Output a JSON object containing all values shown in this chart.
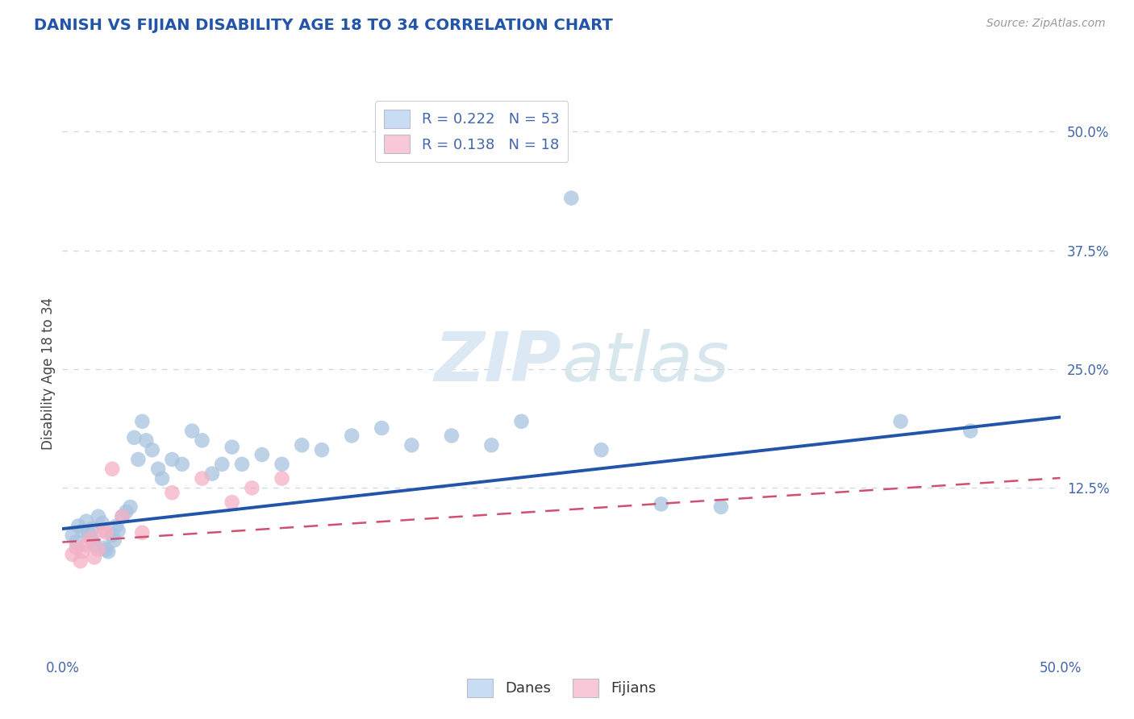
{
  "title": "DANISH VS FIJIAN DISABILITY AGE 18 TO 34 CORRELATION CHART",
  "source_text": "Source: ZipAtlas.com",
  "ylabel": "Disability Age 18 to 34",
  "xlim": [
    0.0,
    0.5
  ],
  "ylim": [
    -0.05,
    0.54
  ],
  "dane_R": 0.222,
  "dane_N": 53,
  "fijian_R": 0.138,
  "fijian_N": 18,
  "background_color": "#ffffff",
  "grid_color": "#c8d4e8",
  "dane_color": "#a8c4e0",
  "fijian_color": "#f4b0c4",
  "dane_line_color": "#2255aa",
  "fijian_line_color": "#d05070",
  "legend_box_color_dane": "#c8dcf4",
  "legend_box_color_fijian": "#f8c8d8",
  "watermark_color": "#dce8f4",
  "title_color": "#2255aa",
  "tick_color": "#4466aa",
  "ylabel_color": "#444444",
  "source_color": "#999999",
  "danes_x": [
    0.005,
    0.007,
    0.008,
    0.01,
    0.012,
    0.013,
    0.014,
    0.015,
    0.015,
    0.016,
    0.018,
    0.02,
    0.021,
    0.022,
    0.023,
    0.025,
    0.026,
    0.027,
    0.028,
    0.03,
    0.032,
    0.034,
    0.036,
    0.038,
    0.04,
    0.042,
    0.045,
    0.048,
    0.05,
    0.055,
    0.06,
    0.065,
    0.07,
    0.075,
    0.08,
    0.085,
    0.09,
    0.1,
    0.11,
    0.12,
    0.13,
    0.145,
    0.16,
    0.175,
    0.195,
    0.215,
    0.23,
    0.255,
    0.27,
    0.3,
    0.33,
    0.42,
    0.455
  ],
  "danes_y": [
    0.075,
    0.068,
    0.085,
    0.08,
    0.09,
    0.078,
    0.072,
    0.082,
    0.07,
    0.065,
    0.095,
    0.088,
    0.062,
    0.06,
    0.058,
    0.075,
    0.07,
    0.085,
    0.08,
    0.095,
    0.1,
    0.105,
    0.178,
    0.155,
    0.195,
    0.175,
    0.165,
    0.145,
    0.135,
    0.155,
    0.15,
    0.185,
    0.175,
    0.14,
    0.15,
    0.168,
    0.15,
    0.16,
    0.15,
    0.17,
    0.165,
    0.18,
    0.188,
    0.17,
    0.18,
    0.17,
    0.195,
    0.43,
    0.165,
    0.108,
    0.105,
    0.195,
    0.185
  ],
  "fijians_x": [
    0.005,
    0.007,
    0.009,
    0.01,
    0.012,
    0.014,
    0.016,
    0.018,
    0.02,
    0.022,
    0.025,
    0.03,
    0.04,
    0.055,
    0.07,
    0.085,
    0.095,
    0.11
  ],
  "fijians_y": [
    0.055,
    0.062,
    0.048,
    0.058,
    0.065,
    0.072,
    0.052,
    0.06,
    0.08,
    0.078,
    0.145,
    0.095,
    0.078,
    0.12,
    0.135,
    0.11,
    0.125,
    0.135
  ]
}
